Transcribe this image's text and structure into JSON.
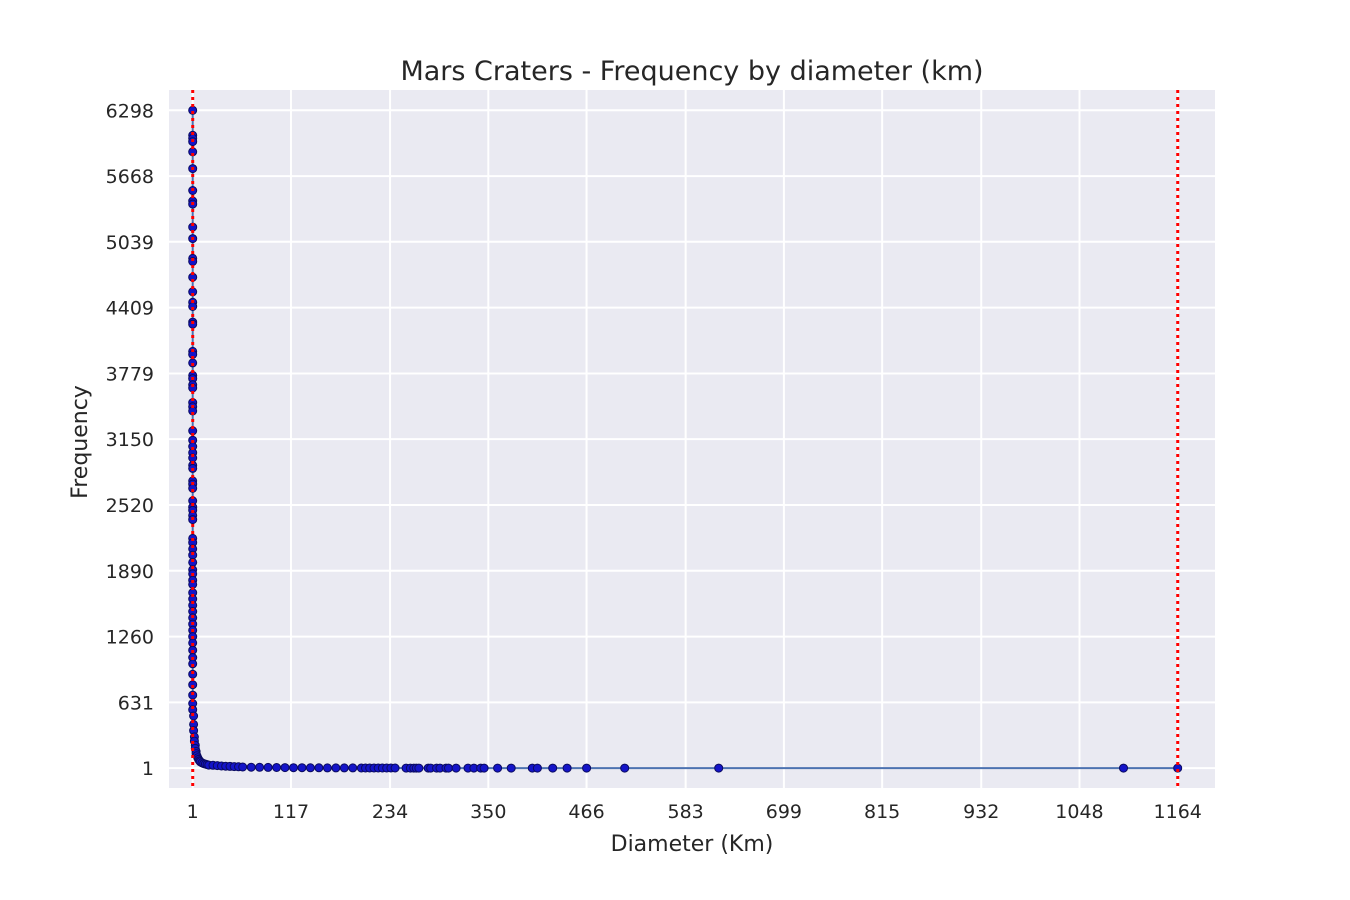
{
  "chart_data": {
    "type": "scatter",
    "title": "Mars Craters - Frequency by diameter (km)",
    "xlabel": "Diameter (Km)",
    "ylabel": "Frequency",
    "xlim": [
      -27,
      1208
    ],
    "ylim": [
      -189,
      6492
    ],
    "xticks": [
      "1",
      "117",
      "234",
      "350",
      "466",
      "583",
      "699",
      "815",
      "932",
      "1048",
      "1164"
    ],
    "yticks": [
      "1",
      "631",
      "1260",
      "1890",
      "2520",
      "3150",
      "3779",
      "4409",
      "5039",
      "5668",
      "6298"
    ],
    "grid": true,
    "reference_lines_x": [
      1,
      1164
    ],
    "colors": {
      "background": "#eaeaf2",
      "grid": "#ffffff",
      "line": "#4c72b0",
      "points": "#1414c8",
      "point_edge": "#0a0a60",
      "reference_line": "#ff0000",
      "text": "#262626"
    },
    "series": [
      {
        "x": [
          1,
          1,
          1,
          1,
          1,
          1,
          1,
          1,
          1,
          1,
          1,
          1,
          1,
          1,
          1,
          1,
          1,
          1,
          1,
          1,
          1,
          1,
          1,
          1,
          1,
          1,
          1,
          1,
          1,
          1,
          1,
          1,
          1,
          1,
          1,
          1,
          1,
          1,
          1,
          1,
          1,
          1,
          1,
          1,
          1,
          1,
          1,
          1,
          1,
          1,
          1,
          1,
          1,
          1,
          1,
          1,
          1,
          1,
          1,
          1,
          1,
          1,
          1,
          1,
          1,
          1,
          1,
          1,
          1,
          1,
          2,
          2,
          2,
          3,
          3,
          4,
          4,
          5,
          5,
          6,
          7,
          8,
          9,
          10,
          12,
          14,
          16,
          18,
          20,
          25,
          30,
          35,
          40,
          45,
          50,
          55,
          60,
          70,
          80,
          90,
          100,
          110,
          120,
          130,
          140,
          150,
          160,
          170,
          180,
          190,
          200,
          205,
          210,
          215,
          220,
          225,
          230,
          235,
          240,
          253,
          258,
          262,
          265,
          268,
          279,
          282,
          289,
          293,
          300,
          303,
          312,
          326,
          333,
          341,
          345,
          361,
          377,
          402,
          408,
          426,
          443,
          466,
          511,
          622,
          1100,
          1164
        ],
        "y": [
          6298,
          6058,
          6030,
          5998,
          5900,
          5740,
          5530,
          5430,
          5400,
          5180,
          5070,
          4880,
          4850,
          4700,
          4560,
          4460,
          4420,
          4270,
          4250,
          3990,
          3960,
          3880,
          3760,
          3730,
          3670,
          3640,
          3500,
          3460,
          3420,
          3230,
          3140,
          3080,
          3020,
          2970,
          2900,
          2870,
          2750,
          2720,
          2680,
          2560,
          2500,
          2470,
          2420,
          2380,
          2200,
          2160,
          2100,
          2040,
          1970,
          1900,
          1860,
          1800,
          1760,
          1680,
          1620,
          1560,
          1500,
          1440,
          1380,
          1320,
          1260,
          1200,
          1130,
          1060,
          1000,
          900,
          800,
          700,
          620,
          560,
          500,
          420,
          360,
          300,
          260,
          220,
          190,
          160,
          140,
          120,
          100,
          85,
          72,
          62,
          52,
          45,
          40,
          35,
          30,
          28,
          25,
          22,
          20,
          18,
          16,
          14,
          12,
          10,
          9,
          8,
          7,
          6,
          5,
          5,
          4,
          4,
          3,
          3,
          3,
          3,
          2,
          2,
          2,
          2,
          2,
          2,
          2,
          2,
          2,
          1,
          1,
          1,
          1,
          1,
          1,
          1,
          1,
          1,
          1,
          1,
          1,
          1,
          1,
          1,
          1,
          1,
          1,
          1,
          1,
          1,
          1,
          1,
          1,
          1,
          1,
          1
        ]
      }
    ]
  }
}
